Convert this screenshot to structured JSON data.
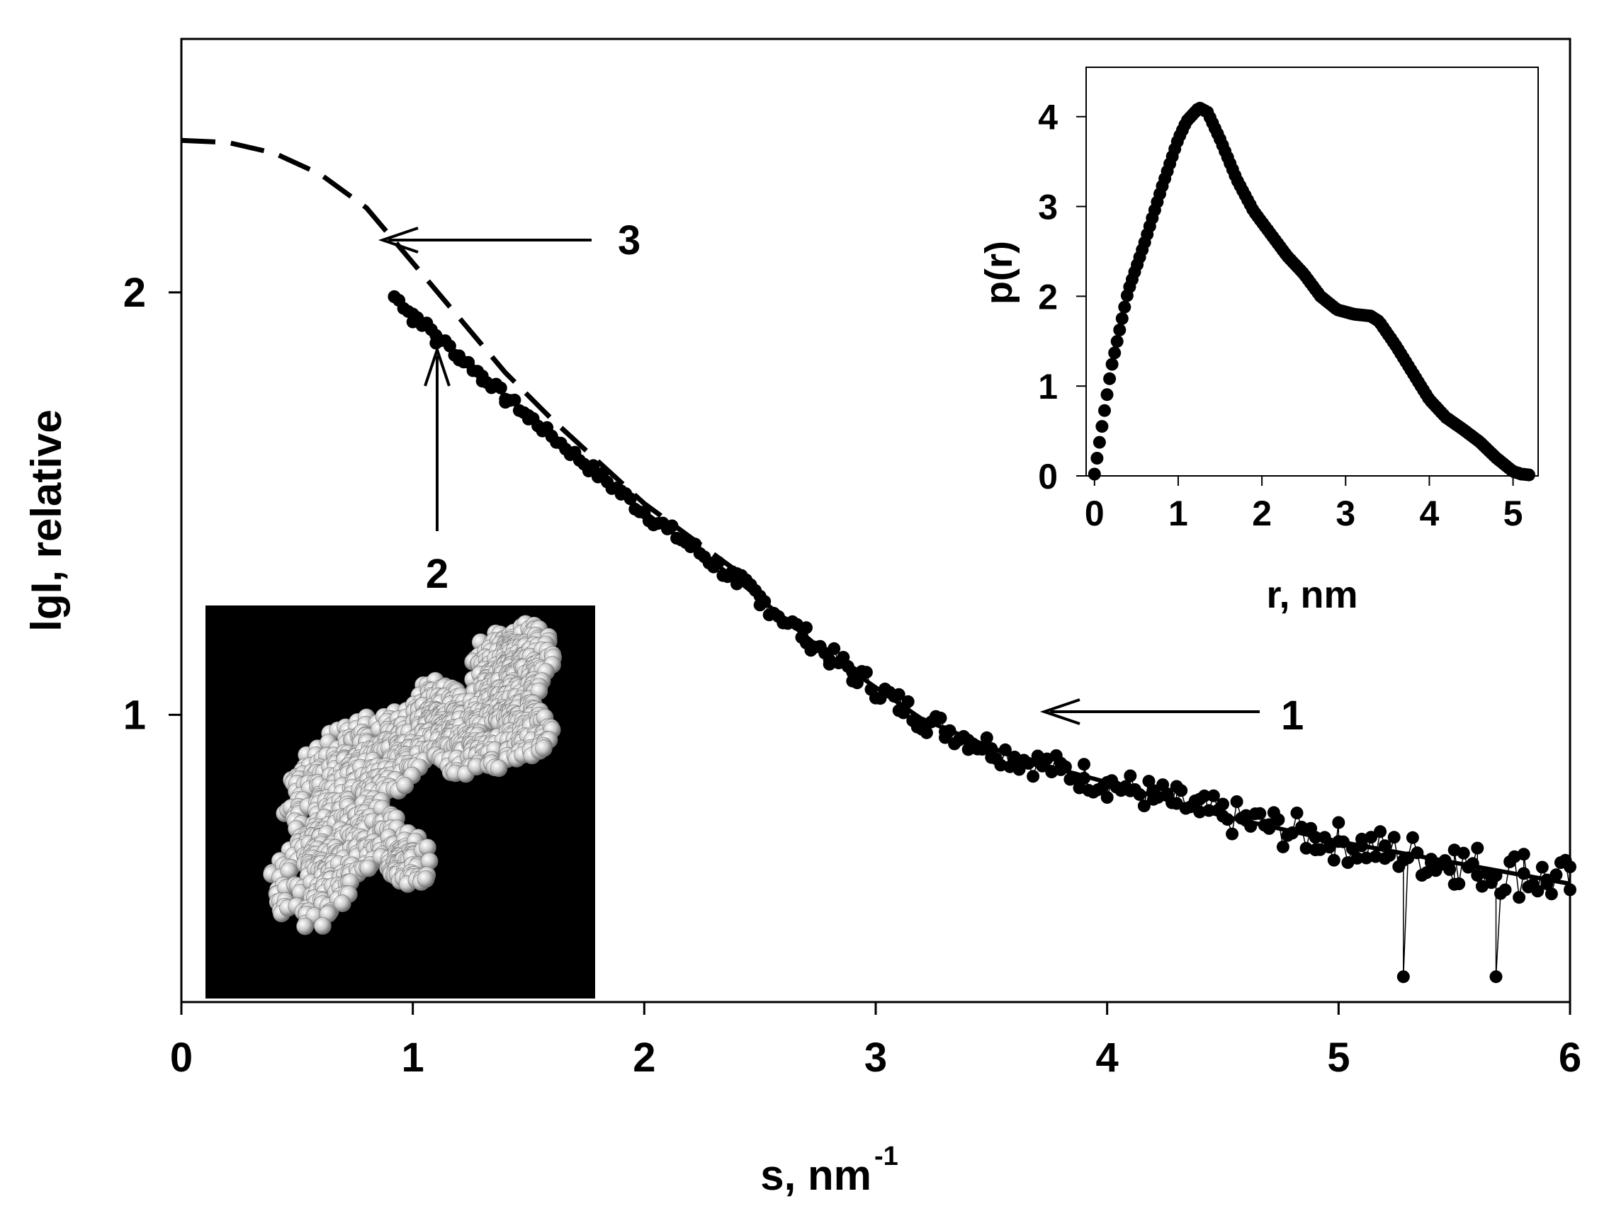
{
  "chart_data": [
    {
      "type": "scatter",
      "title": "",
      "xlabel": "s, nm",
      "xlabel_superscript": "-1",
      "ylabel": "lgI,  relative",
      "xlim": [
        0,
        6
      ],
      "ylim": [
        0.32,
        2.6
      ],
      "x_ticks": [
        "0",
        "1",
        "2",
        "3",
        "4",
        "5",
        "6"
      ],
      "y_ticks": [
        "1",
        "2"
      ],
      "grid": false,
      "curve_labels": [
        "1",
        "2",
        "3"
      ],
      "series": [
        {
          "label": "1",
          "style": "noisy-line-with-markers",
          "description": "experimental data, scattered markers connected by thin line",
          "x": [
            0.92,
            1.0,
            1.1,
            1.2,
            1.3,
            1.4,
            1.5,
            1.6,
            1.7,
            1.8,
            1.9,
            2.0,
            2.1,
            2.2,
            2.3,
            2.4,
            2.5,
            2.6,
            2.7,
            2.8,
            2.9,
            3.0,
            3.1,
            3.2,
            3.3,
            3.4,
            3.5,
            3.6,
            3.7,
            3.8,
            3.9,
            4.0,
            4.1,
            4.2,
            4.3,
            4.4,
            4.5,
            4.6,
            4.7,
            4.8,
            4.9,
            5.0,
            5.1,
            5.2,
            5.28,
            5.4,
            5.5,
            5.6,
            5.68,
            5.8,
            5.9,
            6.0
          ],
          "y": [
            1.99,
            1.93,
            1.88,
            1.84,
            1.79,
            1.74,
            1.7,
            1.66,
            1.62,
            1.57,
            1.53,
            1.48,
            1.44,
            1.4,
            1.36,
            1.31,
            1.26,
            1.22,
            1.17,
            1.13,
            1.08,
            1.04,
            1.01,
            0.98,
            0.96,
            0.94,
            0.92,
            0.9,
            0.89,
            0.87,
            0.85,
            0.84,
            0.82,
            0.8,
            0.79,
            0.77,
            0.76,
            0.75,
            0.74,
            0.72,
            0.71,
            0.7,
            0.69,
            0.66,
            0.38,
            0.65,
            0.68,
            0.62,
            0.38,
            0.67,
            0.6,
            0.64
          ]
        },
        {
          "label": "2",
          "style": "solid-line",
          "description": "model fit curve",
          "x": [
            0.92,
            1.2,
            1.6,
            2.0,
            2.4,
            2.8,
            3.2,
            3.6,
            4.0,
            4.5,
            5.0,
            5.5,
            6.0
          ],
          "y": [
            1.99,
            1.85,
            1.66,
            1.48,
            1.32,
            1.14,
            0.99,
            0.9,
            0.84,
            0.76,
            0.7,
            0.65,
            0.6
          ]
        },
        {
          "label": "3",
          "style": "dashed-line",
          "description": "extrapolated curve",
          "x": [
            0.0,
            0.2,
            0.4,
            0.6,
            0.8,
            1.0,
            1.2,
            1.4,
            1.6,
            1.8,
            2.0,
            2.2,
            2.4
          ],
          "y": [
            2.36,
            2.355,
            2.33,
            2.28,
            2.2,
            2.07,
            1.94,
            1.81,
            1.7,
            1.6,
            1.5,
            1.42,
            1.34
          ]
        }
      ],
      "annotations": [
        {
          "text": "3",
          "points_to": [
            0.85,
            2.12
          ]
        },
        {
          "text": "2",
          "points_to": [
            1.1,
            1.86
          ]
        },
        {
          "text": "1",
          "points_to": [
            3.72,
            0.99
          ]
        }
      ]
    },
    {
      "type": "scatter",
      "title": "",
      "xlabel": "r, nm",
      "ylabel": "p(r)",
      "xlim": [
        -0.1,
        5.3
      ],
      "ylim": [
        0,
        4.55
      ],
      "x_ticks": [
        "0",
        "1",
        "2",
        "3",
        "4",
        "5"
      ],
      "y_ticks": [
        "0",
        "1",
        "2",
        "3",
        "4"
      ],
      "grid": false,
      "series": [
        {
          "label": "",
          "x": [
            0.0,
            0.2,
            0.4,
            0.6,
            0.8,
            1.0,
            1.1,
            1.2,
            1.25,
            1.35,
            1.5,
            1.7,
            1.9,
            2.1,
            2.3,
            2.5,
            2.7,
            2.9,
            3.1,
            3.3,
            3.4,
            3.6,
            3.8,
            4.0,
            4.2,
            4.4,
            4.6,
            4.8,
            5.0,
            5.1,
            5.2
          ],
          "y": [
            0.02,
            1.2,
            2.05,
            2.6,
            3.2,
            3.75,
            3.95,
            4.05,
            4.1,
            4.05,
            3.75,
            3.3,
            2.95,
            2.7,
            2.45,
            2.25,
            2.0,
            1.85,
            1.8,
            1.78,
            1.72,
            1.45,
            1.15,
            0.85,
            0.65,
            0.52,
            0.38,
            0.2,
            0.05,
            0.02,
            0.01
          ]
        }
      ]
    }
  ],
  "inset_image": {
    "description": "molecular bead model",
    "background_color": "#000000",
    "bead_color": "#cfcfcf"
  }
}
